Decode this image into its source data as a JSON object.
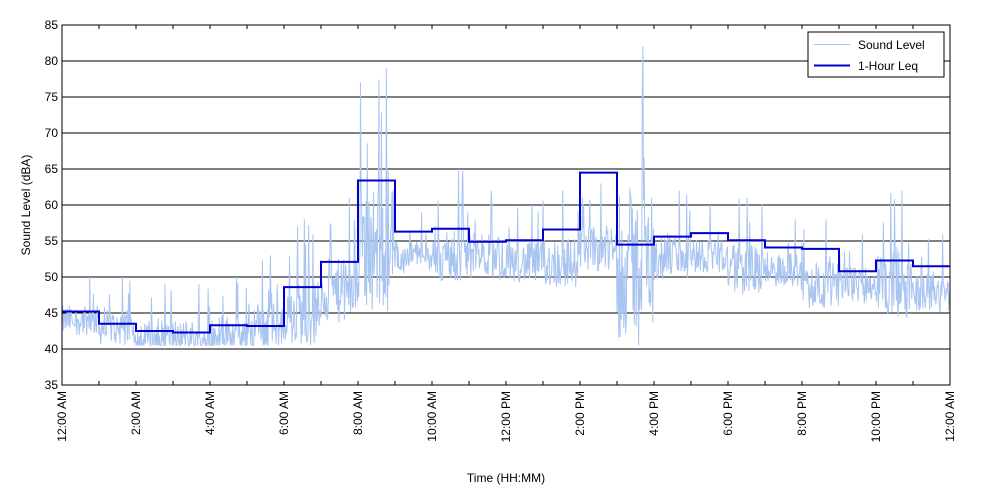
{
  "chart_data": {
    "type": "line",
    "xlabel": "Time (HH:MM)",
    "ylabel": "Sound Level (dBA)",
    "ylim": [
      35,
      85
    ],
    "xlim": [
      "12:00 AM",
      "12:00 AM (next day)"
    ],
    "y_ticks": [
      35,
      40,
      45,
      50,
      55,
      60,
      65,
      70,
      75,
      80,
      85
    ],
    "x_tick_labels": [
      "12:00 AM",
      "2:00 AM",
      "4:00 AM",
      "6:00 AM",
      "8:00 AM",
      "10:00 AM",
      "12:00 PM",
      "2:00 PM",
      "4:00 PM",
      "6:00 PM",
      "8:00 PM",
      "10:00 PM",
      "12:00 AM"
    ],
    "grid": "horizontal",
    "legend_position": "top-right",
    "series": [
      {
        "name": "Sound Level",
        "color": "#a8c4f0",
        "hourly_baseline": [
          44,
          43,
          41.5,
          41.5,
          42,
          43,
          45,
          48,
          54,
          53,
          53,
          53,
          52,
          52,
          54,
          52,
          53,
          53,
          51,
          51,
          49,
          49,
          49,
          48
        ],
        "hourly_peak": [
          50,
          50,
          49,
          49,
          50,
          53,
          58,
          61,
          79,
          59,
          65,
          62,
          60,
          62,
          63,
          82,
          62,
          60,
          61,
          58,
          58,
          56,
          62,
          56
        ]
      },
      {
        "name": "1-Hour Leq",
        "color": "#0000cc",
        "values": [
          45.2,
          43.5,
          42.5,
          42.3,
          43.3,
          43.2,
          48.6,
          52.1,
          63.4,
          56.3,
          56.7,
          54.9,
          55.1,
          56.6,
          64.5,
          54.5,
          55.6,
          56.1,
          55.1,
          54.1,
          53.9,
          50.8,
          52.3,
          51.5
        ]
      }
    ]
  }
}
